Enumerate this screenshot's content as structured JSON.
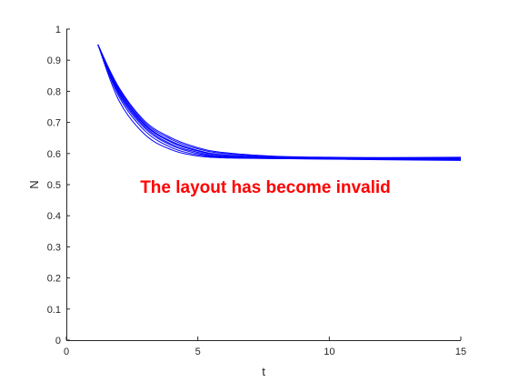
{
  "chart_data": {
    "type": "line",
    "title": "",
    "xlabel": "t",
    "ylabel": "N",
    "xlim": [
      0,
      15
    ],
    "ylim": [
      0,
      1
    ],
    "grid": false,
    "line_color": "#0000ff",
    "x_ticks": [
      0,
      5,
      10,
      15
    ],
    "y_ticks": [
      0,
      0.1,
      0.2,
      0.3,
      0.4,
      0.5,
      0.6,
      0.7,
      0.8,
      0.9,
      1
    ],
    "x_tick_labels": [
      "0",
      "5",
      "10",
      "15"
    ],
    "y_tick_labels": [
      "0",
      "0.1",
      "0.2",
      "0.3",
      "0.4",
      "0.5",
      "0.6",
      "0.7",
      "0.8",
      "0.9",
      "1"
    ],
    "series": [
      {
        "x": [
          1.2,
          2,
          3,
          4,
          5,
          6,
          8,
          10,
          12,
          15
        ],
        "values": [
          0.95,
          0.8,
          0.69,
          0.636,
          0.608,
          0.594,
          0.586,
          0.584,
          0.583,
          0.582
        ]
      },
      {
        "x": [
          1.2,
          2,
          3,
          4,
          5,
          6,
          8,
          10,
          12,
          15
        ],
        "values": [
          0.95,
          0.803,
          0.693,
          0.639,
          0.61,
          0.596,
          0.587,
          0.585,
          0.584,
          0.584
        ]
      },
      {
        "x": [
          1.2,
          2,
          3,
          4,
          5,
          6,
          8,
          10,
          12,
          15
        ],
        "values": [
          0.95,
          0.795,
          0.685,
          0.63,
          0.604,
          0.591,
          0.585,
          0.583,
          0.582,
          0.58
        ]
      },
      {
        "x": [
          1.2,
          2,
          3,
          4,
          5,
          6,
          8,
          10,
          12,
          15
        ],
        "values": [
          0.95,
          0.79,
          0.68,
          0.626,
          0.6,
          0.589,
          0.584,
          0.582,
          0.58,
          0.578
        ]
      },
      {
        "x": [
          1.2,
          2,
          3,
          4,
          5,
          6,
          8,
          10,
          12,
          15
        ],
        "values": [
          0.95,
          0.808,
          0.698,
          0.645,
          0.615,
          0.6,
          0.589,
          0.587,
          0.586,
          0.586
        ]
      },
      {
        "x": [
          1.2,
          2,
          3,
          4,
          5,
          6,
          8,
          10,
          12,
          15
        ],
        "values": [
          0.95,
          0.783,
          0.672,
          0.619,
          0.596,
          0.588,
          0.584,
          0.583,
          0.582,
          0.581
        ]
      },
      {
        "x": [
          1.2,
          2,
          3,
          4,
          5,
          6,
          8,
          10,
          12,
          15
        ],
        "values": [
          0.95,
          0.77,
          0.66,
          0.612,
          0.592,
          0.586,
          0.584,
          0.584,
          0.585,
          0.586
        ]
      },
      {
        "x": [
          1.2,
          2,
          3,
          4,
          5,
          6,
          8,
          10,
          12,
          15
        ],
        "values": [
          0.95,
          0.812,
          0.703,
          0.65,
          0.619,
          0.603,
          0.591,
          0.588,
          0.587,
          0.588
        ]
      }
    ],
    "annotation": {
      "text": "The layout has become invalid",
      "color": "#ff0000"
    }
  }
}
